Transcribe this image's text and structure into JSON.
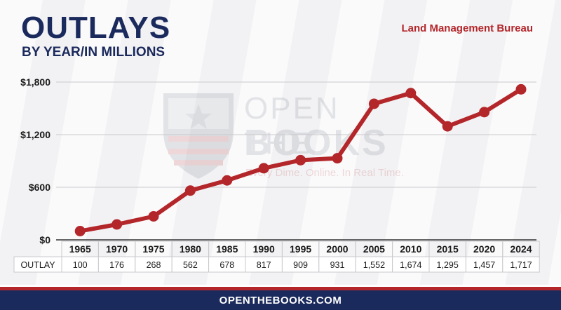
{
  "header": {
    "title": "OUTLAYS",
    "subtitle": "BY YEAR/IN MILLIONS",
    "agency": "Land Management Bureau"
  },
  "watermark": {
    "line1": "OPEN THE",
    "line2": "BOOKS",
    "tagline": "Every Dime. Online. In Real Time."
  },
  "footer": {
    "url": "OPENTHEBOOKS.COM"
  },
  "colors": {
    "title": "#1b2a5c",
    "line": "#b3262a",
    "footer_bg": "#1b2a5c",
    "footer_stripe": "#b3262a"
  },
  "chart_data": {
    "type": "line",
    "categories": [
      "1965",
      "1970",
      "1975",
      "1980",
      "1985",
      "1990",
      "1995",
      "2000",
      "2005",
      "2010",
      "2015",
      "2020",
      "2024"
    ],
    "values": [
      100,
      176,
      268,
      562,
      678,
      817,
      909,
      931,
      1552,
      1674,
      1295,
      1457,
      1717
    ],
    "value_labels": [
      "100",
      "176",
      "268",
      "562",
      "678",
      "817",
      "909",
      "931",
      "1,552",
      "1,674",
      "1,295",
      "1,457",
      "1,717"
    ],
    "row_label": "OUTLAY",
    "ylim": [
      0,
      1800
    ],
    "yticks": [
      0,
      600,
      1200,
      1800
    ],
    "ytick_labels": [
      "$0",
      "$600",
      "$1,200",
      "$1,800"
    ],
    "grid": true
  }
}
